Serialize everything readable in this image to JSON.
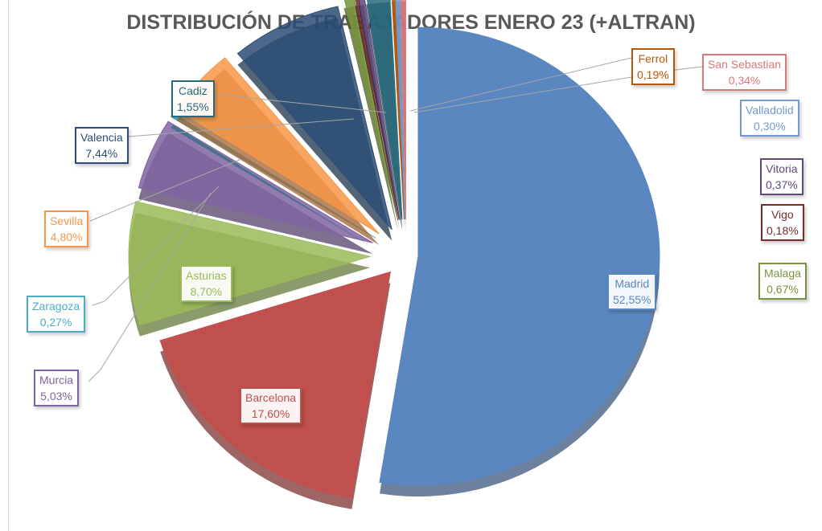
{
  "chart_data": {
    "type": "pie",
    "title": "DISTRIBUCIÓN DE TRABAJADORES ENERO 23 (+ALTRAN)",
    "slices": [
      {
        "name": "Madrid",
        "value": 52.55,
        "label": "52,55%",
        "color": "#5b87c0"
      },
      {
        "name": "Barcelona",
        "value": 17.6,
        "label": "17,60%",
        "color": "#c0504d"
      },
      {
        "name": "Asturias",
        "value": 8.7,
        "label": "8,70%",
        "color": "#9bbb59"
      },
      {
        "name": "Murcia",
        "value": 5.03,
        "label": "5,03%",
        "color": "#8064a2"
      },
      {
        "name": "Zaragoza",
        "value": 0.27,
        "label": "0,27%",
        "color": "#4bacc6"
      },
      {
        "name": "Sevilla",
        "value": 4.8,
        "label": "4,80%",
        "color": "#f79646"
      },
      {
        "name": "Valencia",
        "value": 7.44,
        "label": "7,44%",
        "color": "#2c4d75"
      },
      {
        "name": "Malaga",
        "value": 0.67,
        "label": "0,67%",
        "color": "#77933c"
      },
      {
        "name": "Vigo",
        "value": 0.18,
        "label": "0,18%",
        "color": "#772c2a"
      },
      {
        "name": "Vitoria",
        "value": 0.37,
        "label": "0,37%",
        "color": "#5f497a"
      },
      {
        "name": "Cadiz",
        "value": 1.55,
        "label": "1,55%",
        "color": "#276a7c"
      },
      {
        "name": "Ferrol",
        "value": 0.19,
        "label": "0,19%",
        "color": "#b65708"
      },
      {
        "name": "Valladolid",
        "value": 0.3,
        "label": "0,30%",
        "color": "#729aca"
      },
      {
        "name": "San Sebastian",
        "value": 0.34,
        "label": "0,34%",
        "color": "#d9777b"
      }
    ],
    "legend": "none",
    "style": "3d-exploded"
  }
}
